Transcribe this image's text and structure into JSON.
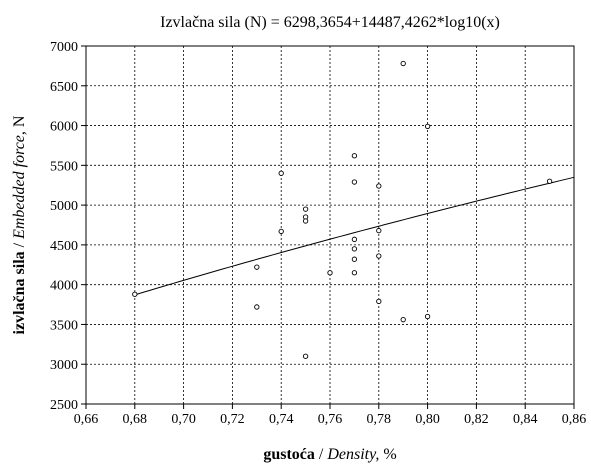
{
  "chart_data": {
    "type": "scatter",
    "title": "Izvlačna sila (N) = 6298,3654+14487,4262*log10(x)",
    "xlabel": {
      "bold": "gustoća",
      "sep": " / ",
      "italic": "Density,",
      "unit": " %"
    },
    "ylabel": {
      "bold": "izvlačna sila",
      "sep": " / ",
      "italic": "Embedded force,",
      "unit": "  N"
    },
    "xlim": [
      0.66,
      0.86
    ],
    "ylim": [
      2500,
      7000
    ],
    "x_ticks": [
      0.66,
      0.68,
      0.7,
      0.72,
      0.74,
      0.76,
      0.78,
      0.8,
      0.82,
      0.84,
      0.86
    ],
    "x_tick_labels": [
      "0,66",
      "0,68",
      "0,70",
      "0,72",
      "0,74",
      "0,76",
      "0,78",
      "0,80",
      "0,82",
      "0,84",
      "0,86"
    ],
    "y_ticks": [
      2500,
      3000,
      3500,
      4000,
      4500,
      5000,
      5500,
      6000,
      6500,
      7000
    ],
    "y_tick_labels": [
      "2500",
      "3000",
      "3500",
      "4000",
      "4500",
      "5000",
      "5500",
      "6000",
      "6500",
      "7000"
    ],
    "grid": true,
    "points": [
      {
        "x": 0.68,
        "y": 3880
      },
      {
        "x": 0.73,
        "y": 4220
      },
      {
        "x": 0.73,
        "y": 3720
      },
      {
        "x": 0.74,
        "y": 5400
      },
      {
        "x": 0.74,
        "y": 4670
      },
      {
        "x": 0.75,
        "y": 4950
      },
      {
        "x": 0.75,
        "y": 4850
      },
      {
        "x": 0.75,
        "y": 4800
      },
      {
        "x": 0.75,
        "y": 3100
      },
      {
        "x": 0.76,
        "y": 4150
      },
      {
        "x": 0.77,
        "y": 5620
      },
      {
        "x": 0.77,
        "y": 5290
      },
      {
        "x": 0.77,
        "y": 4570
      },
      {
        "x": 0.77,
        "y": 4450
      },
      {
        "x": 0.77,
        "y": 4320
      },
      {
        "x": 0.77,
        "y": 4150
      },
      {
        "x": 0.78,
        "y": 5240
      },
      {
        "x": 0.78,
        "y": 4680
      },
      {
        "x": 0.78,
        "y": 4360
      },
      {
        "x": 0.78,
        "y": 3790
      },
      {
        "x": 0.79,
        "y": 6780
      },
      {
        "x": 0.79,
        "y": 3560
      },
      {
        "x": 0.8,
        "y": 5990
      },
      {
        "x": 0.8,
        "y": 3600
      },
      {
        "x": 0.85,
        "y": 5300
      }
    ],
    "fit": {
      "a": 6298.3654,
      "b": 14487.4262,
      "model": "log10"
    }
  }
}
